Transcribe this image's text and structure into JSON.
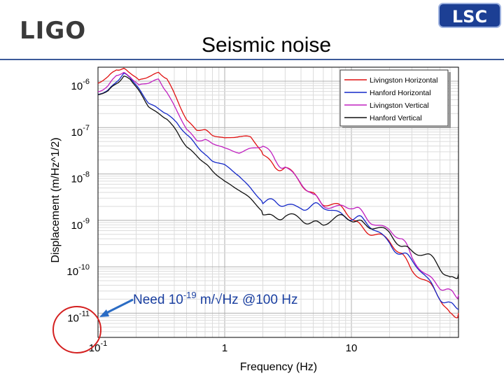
{
  "header": {
    "logo_text": "LIGO",
    "badge_text": "LSC",
    "slide_title": "Seismic noise"
  },
  "colors": {
    "rule": "#3c5a9a",
    "annotation_arrow": "#2b6cc4",
    "annotation_circle": "#d42020"
  },
  "chart_data": {
    "type": "line",
    "title": "",
    "xlabel": "Frequency (Hz)",
    "ylabel": "Displacement (m/Hz^1/2)",
    "xscale": "log",
    "yscale": "log",
    "xlim": [
      0.1,
      70
    ],
    "ylim": [
      3e-12,
      2e-06
    ],
    "x_ticks": [
      {
        "value": 0.1,
        "label": "10-1"
      },
      {
        "value": 1,
        "label": "1"
      },
      {
        "value": 10,
        "label": "10"
      }
    ],
    "y_ticks": [
      {
        "value": 1e-06,
        "label": "10-6"
      },
      {
        "value": 1e-07,
        "label": "10-7"
      },
      {
        "value": 1e-08,
        "label": "10-8"
      },
      {
        "value": 1e-09,
        "label": "10-9"
      },
      {
        "value": 1e-10,
        "label": "10-10"
      },
      {
        "value": 1e-11,
        "label": "10-11"
      }
    ],
    "grid": true,
    "legend_position": "top-right",
    "series": [
      {
        "name": "Livingston Horizontal",
        "color": "#e01010",
        "x": [
          0.1,
          0.12,
          0.14,
          0.16,
          0.18,
          0.21,
          0.25,
          0.3,
          0.35,
          0.42,
          0.5,
          0.6,
          0.7,
          0.8,
          1.0,
          1.3,
          1.6,
          2.0,
          2.5,
          3.0,
          4.0,
          5.0,
          6.0,
          8.0,
          10.0,
          12.0,
          15.0,
          20.0,
          25.0,
          30.0,
          40.0,
          50.0,
          60.0,
          70.0
        ],
        "y": [
          9e-07,
          1.2e-06,
          1.8e-06,
          1.9e-06,
          1.5e-06,
          1e-06,
          1.3e-06,
          1.55e-06,
          1.1e-06,
          4e-07,
          1.5e-07,
          9e-08,
          8.5e-08,
          7e-08,
          6e-08,
          6.5e-08,
          6e-08,
          3e-08,
          1.5e-08,
          1.2e-08,
          6e-09,
          4e-09,
          2.5e-09,
          1.7e-09,
          1.2e-09,
          8e-10,
          5e-10,
          3e-10,
          2e-10,
          1e-10,
          4e-11,
          2e-11,
          1e-11,
          1e-11
        ]
      },
      {
        "name": "Hanford Horizontal",
        "color": "#1428c8",
        "x": [
          0.1,
          0.12,
          0.14,
          0.16,
          0.18,
          0.21,
          0.25,
          0.3,
          0.35,
          0.42,
          0.5,
          0.6,
          0.7,
          0.8,
          1.0,
          1.3,
          1.6,
          2.0,
          2.5,
          3.0,
          4.0,
          5.0,
          6.0,
          8.0,
          10.0,
          12.0,
          15.0,
          20.0,
          25.0,
          30.0,
          40.0,
          50.0,
          60.0,
          70.0
        ],
        "y": [
          5e-07,
          6.5e-07,
          1e-06,
          1.4e-06,
          1.2e-06,
          7e-07,
          3.5e-07,
          2.4e-07,
          2e-07,
          1.3e-07,
          7e-08,
          4e-08,
          2.6e-08,
          2e-08,
          1.5e-08,
          9e-09,
          5e-09,
          2.6e-09,
          2.2e-09,
          2e-09,
          2.2e-09,
          2e-09,
          1.8e-09,
          1.4e-09,
          1.3e-09,
          1e-09,
          6e-10,
          3.5e-10,
          2e-10,
          1.3e-10,
          5e-11,
          2.5e-11,
          1.5e-11,
          1.2e-11
        ]
      },
      {
        "name": "Livingston Vertical",
        "color": "#c020c0",
        "x": [
          0.1,
          0.12,
          0.14,
          0.16,
          0.18,
          0.21,
          0.25,
          0.3,
          0.35,
          0.42,
          0.5,
          0.6,
          0.7,
          0.8,
          1.0,
          1.3,
          1.6,
          2.0,
          2.5,
          3.0,
          4.0,
          5.0,
          6.0,
          8.0,
          10.0,
          12.0,
          15.0,
          20.0,
          25.0,
          30.0,
          40.0,
          50.0,
          60.0,
          70.0
        ],
        "y": [
          6e-07,
          8e-07,
          1.3e-06,
          1.5e-06,
          1.3e-06,
          8e-07,
          9e-07,
          1.1e-06,
          6e-07,
          2.2e-07,
          9e-08,
          5.5e-08,
          5.5e-08,
          4.5e-08,
          3.5e-08,
          3e-08,
          3.5e-08,
          3.8e-08,
          2e-08,
          1.6e-08,
          6e-09,
          3e-09,
          2.5e-09,
          2e-09,
          1.8e-09,
          1.4e-09,
          1e-09,
          6e-10,
          3.5e-10,
          1.7e-10,
          7e-11,
          3.5e-11,
          2.5e-11,
          2.5e-11
        ]
      },
      {
        "name": "Hanford Vertical",
        "color": "#101010",
        "x": [
          0.1,
          0.12,
          0.14,
          0.16,
          0.18,
          0.21,
          0.25,
          0.3,
          0.35,
          0.42,
          0.5,
          0.6,
          0.7,
          0.8,
          1.0,
          1.3,
          1.6,
          2.0,
          2.5,
          3.0,
          4.0,
          5.0,
          6.0,
          8.0,
          10.0,
          12.0,
          15.0,
          20.0,
          25.0,
          30.0,
          40.0,
          50.0,
          60.0,
          70.0
        ],
        "y": [
          5e-07,
          6e-07,
          9e-07,
          1.3e-06,
          1.1e-06,
          6e-07,
          3e-07,
          2e-07,
          1.5e-07,
          8e-08,
          4e-08,
          2.5e-08,
          1.6e-08,
          1.2e-08,
          7e-09,
          4.5e-09,
          2.8e-09,
          1.6e-09,
          1.2e-09,
          1.1e-09,
          1e-09,
          1e-09,
          9e-10,
          1e-09,
          1.1e-09,
          1e-09,
          7e-10,
          4.5e-10,
          3e-10,
          2.5e-10,
          1.6e-10,
          9e-11,
          6e-11,
          7e-11
        ]
      }
    ],
    "annotation": {
      "text": "Need 10-19 m/√Hz @100 Hz"
    }
  }
}
